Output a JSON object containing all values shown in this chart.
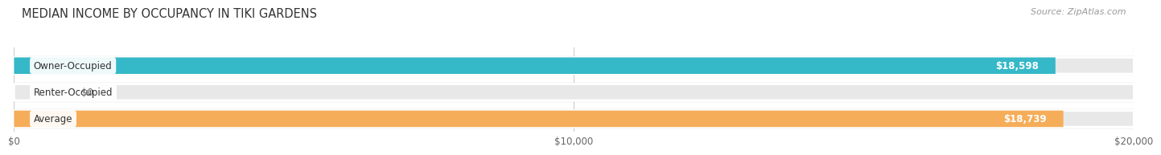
{
  "title": "MEDIAN INCOME BY OCCUPANCY IN TIKI GARDENS",
  "source": "Source: ZipAtlas.com",
  "categories": [
    "Owner-Occupied",
    "Renter-Occupied",
    "Average"
  ],
  "values": [
    18598,
    0,
    18739
  ],
  "bar_colors": [
    "#35b8c8",
    "#c4a8d0",
    "#f5ad5a"
  ],
  "bar_labels": [
    "$18,598",
    "$0",
    "$18,739"
  ],
  "xlim": [
    0,
    20000
  ],
  "xticks": [
    0,
    10000,
    20000
  ],
  "xtick_labels": [
    "$0",
    "$10,000",
    "$20,000"
  ],
  "fig_bg_color": "#ffffff",
  "bar_bg_color": "#e8e8e8",
  "row_bg_color": "#f5f5f5",
  "figsize": [
    14.06,
    1.96
  ],
  "dpi": 100
}
